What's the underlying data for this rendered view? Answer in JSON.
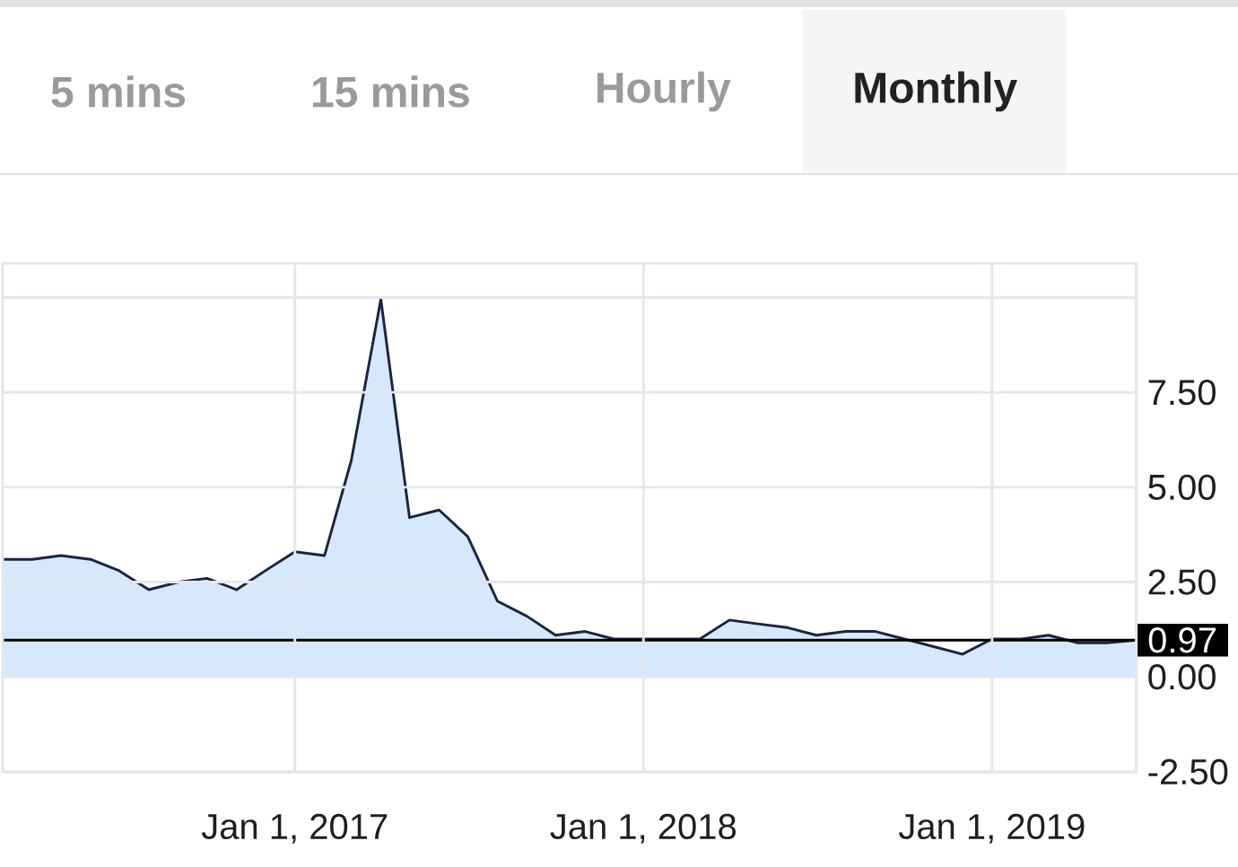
{
  "chart_data": {
    "type": "area",
    "annotations": [
      "5 mins",
      "15 mins",
      "Hourly",
      "Monthly"
    ],
    "x": [
      "2016-03",
      "2016-04",
      "2016-05",
      "2016-06",
      "2016-07",
      "2016-08",
      "2016-09",
      "2016-10",
      "2016-11",
      "2016-12",
      "2017-01",
      "2017-02",
      "2017-03",
      "2017-04",
      "2017-05",
      "2017-06",
      "2017-07",
      "2017-08",
      "2017-09",
      "2017-10",
      "2017-11",
      "2017-12",
      "2018-01",
      "2018-02",
      "2018-03",
      "2018-04",
      "2018-05",
      "2018-06",
      "2018-07",
      "2018-08",
      "2018-09",
      "2018-10",
      "2018-11",
      "2018-12",
      "2019-01",
      "2019-02",
      "2019-03",
      "2019-04",
      "2019-05",
      "2019-06"
    ],
    "values": [
      3.1,
      3.1,
      3.2,
      3.1,
      2.8,
      2.3,
      2.5,
      2.6,
      2.3,
      2.8,
      3.3,
      3.2,
      5.7,
      9.95,
      4.2,
      4.4,
      3.7,
      2.0,
      1.6,
      1.1,
      1.2,
      1.0,
      1.0,
      1.0,
      1.0,
      1.5,
      1.4,
      1.3,
      1.1,
      1.2,
      1.2,
      1.0,
      0.8,
      0.6,
      1.0,
      1.0,
      1.1,
      0.9,
      0.9,
      0.97
    ],
    "color": "#d6e8fb",
    "xlim": [
      "2016-03-01",
      "2019-06-01"
    ],
    "xticks": [
      {
        "value": "2017-01-01",
        "label": "Jan 1, 2017"
      },
      {
        "value": "2018-01-01",
        "label": "Jan 1, 2018"
      },
      {
        "value": "2019-01-01",
        "label": "Jan 1, 2019"
      }
    ],
    "ylim": [
      -2.5,
      10.9
    ],
    "yticks": [
      {
        "value": -2.5,
        "label": "-2.50"
      },
      {
        "value": 0,
        "label": "0.00"
      },
      {
        "value": 2.5,
        "label": "2.50"
      },
      {
        "value": 5,
        "label": "5.00"
      },
      {
        "value": 7.5,
        "label": "7.50"
      },
      {
        "value": 10,
        "label": null
      }
    ],
    "grid": true,
    "ref_lines": [
      {
        "axis": "y",
        "value": 0.97,
        "label": "0.97",
        "color": "#000000"
      }
    ]
  }
}
